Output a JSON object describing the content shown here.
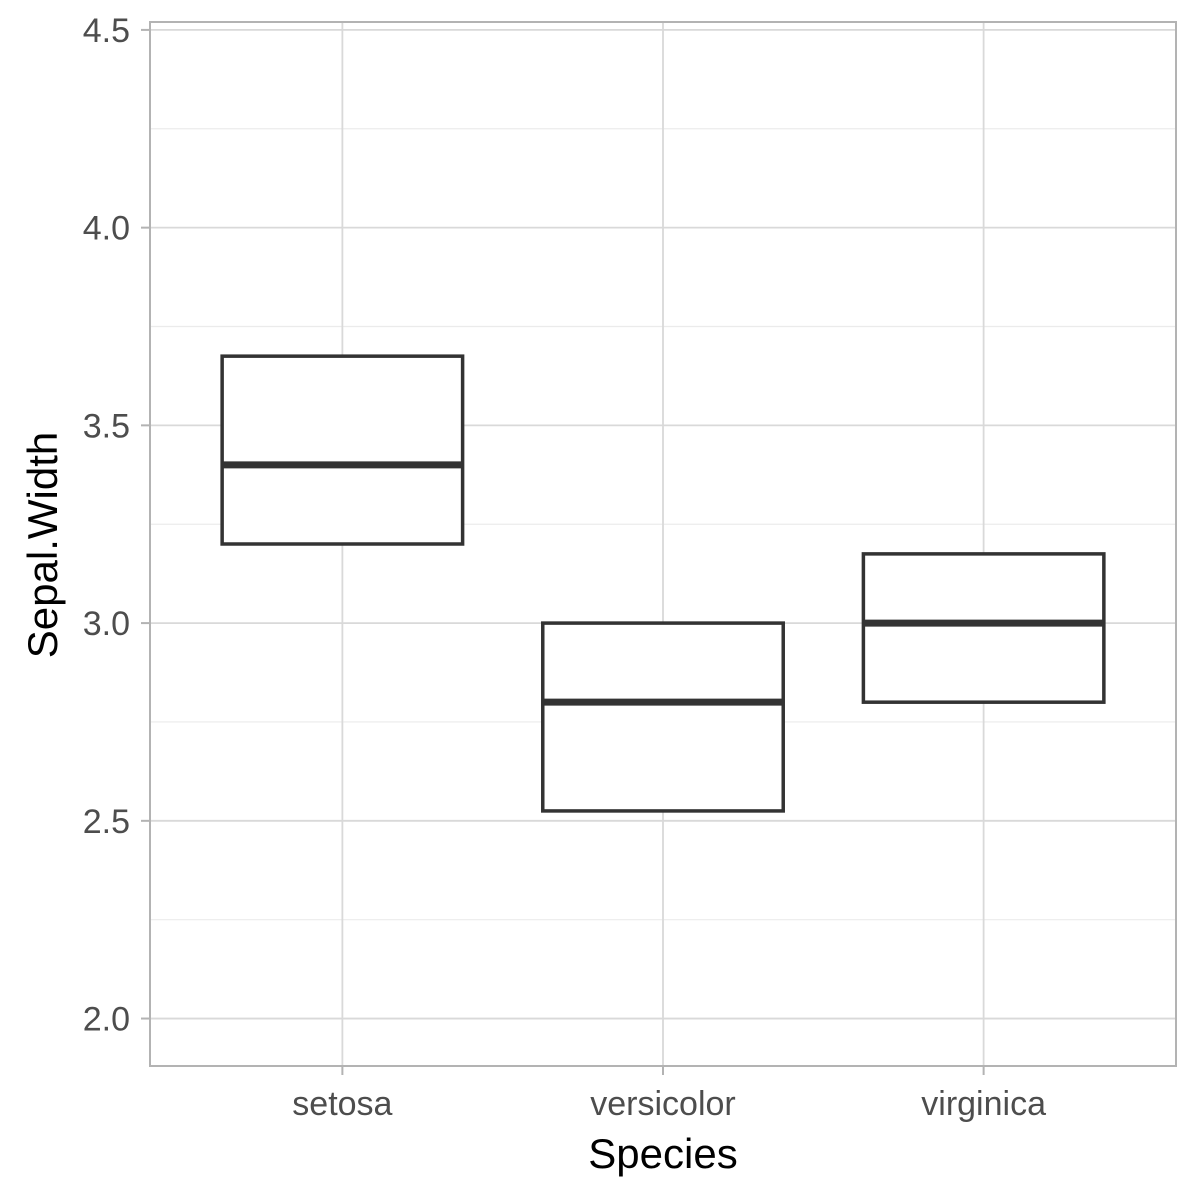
{
  "chart_data": {
    "type": "box",
    "xlabel": "Species",
    "ylabel": "Sepal.Width",
    "categories": [
      "setosa",
      "versicolor",
      "virginica"
    ],
    "boxes": [
      {
        "category": "setosa",
        "q1": 3.2,
        "median": 3.4,
        "q3": 3.675
      },
      {
        "category": "versicolor",
        "q1": 2.525,
        "median": 2.8,
        "q3": 3.0
      },
      {
        "category": "virginica",
        "q1": 2.8,
        "median": 3.0,
        "q3": 3.175
      }
    ],
    "ylim": [
      1.88,
      4.52
    ],
    "y_ticks": [
      2.0,
      2.5,
      3.0,
      3.5,
      4.0,
      4.5
    ],
    "y_tick_labels": [
      "2.0",
      "2.5",
      "3.0",
      "3.5",
      "4.0",
      "4.5"
    ],
    "grid": true,
    "colors": {
      "box_stroke": "#333333",
      "box_fill": "#ffffff",
      "grid_major": "#d9d9d9",
      "grid_minor": "#ebebeb",
      "panel_border": "#b3b3b3",
      "tick_text": "#4d4d4d"
    }
  }
}
